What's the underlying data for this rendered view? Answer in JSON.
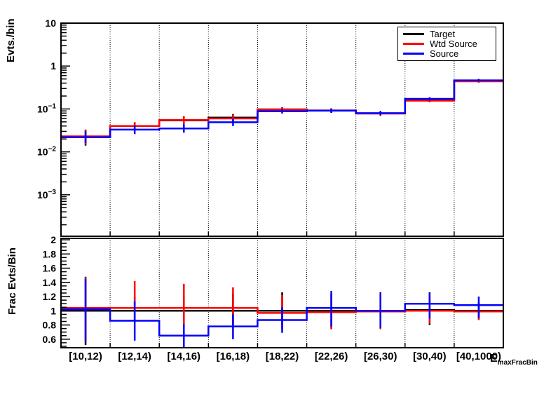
{
  "canvas": {
    "bg": "#ffffff"
  },
  "colors": {
    "target": "#000000",
    "wtd_source": "#ff0000",
    "source": "#0000ff",
    "frame": "#000000",
    "grid": "#000000"
  },
  "legend": {
    "entries": [
      "Target",
      "Wtd Source",
      "Source"
    ]
  },
  "chart_data": [
    {
      "type": "step-histogram",
      "panel": "top",
      "ylabel": "Evts./bin",
      "yscale": "log",
      "ylim": [
        0.000108,
        10
      ],
      "grid": "vertical-dotted",
      "legend_position": "top-right",
      "yticks": [
        {
          "v": 10,
          "label": "10"
        },
        {
          "v": 1,
          "label": "1"
        },
        {
          "v": 0.1,
          "label": "10^-1"
        },
        {
          "v": 0.01,
          "label": "10^-2"
        },
        {
          "v": 0.001,
          "label": "10^-3"
        }
      ],
      "categories": [
        "[10,12)",
        "[12,14)",
        "[14,16)",
        "[16,18)",
        "[18,22)",
        "[22,26)",
        "[26,30)",
        "[30,40)",
        "[40,1000)"
      ],
      "series": [
        {
          "name": "Target",
          "color": "#000000",
          "values": [
            0.022,
            0.04,
            0.054,
            0.063,
            0.098,
            0.092,
            0.079,
            0.16,
            0.46
          ],
          "err_lo": [
            0.014,
            0.032,
            0.044,
            0.051,
            0.087,
            0.082,
            0.07,
            0.146,
            0.43
          ],
          "err_hi": [
            0.033,
            0.049,
            0.067,
            0.076,
            0.11,
            0.103,
            0.089,
            0.175,
            0.49
          ]
        },
        {
          "name": "Wtd Source",
          "color": "#ff0000",
          "values": [
            0.023,
            0.04,
            0.055,
            0.06,
            0.097,
            0.092,
            0.078,
            0.156,
            0.44
          ],
          "err_lo": [
            0.015,
            0.032,
            0.044,
            0.049,
            0.086,
            0.082,
            0.069,
            0.143,
            0.41
          ],
          "err_hi": [
            0.032,
            0.049,
            0.068,
            0.073,
            0.109,
            0.103,
            0.088,
            0.171,
            0.47
          ]
        },
        {
          "name": "Source",
          "color": "#0000ff",
          "values": [
            0.022,
            0.033,
            0.035,
            0.049,
            0.088,
            0.091,
            0.08,
            0.172,
            0.465
          ],
          "err_lo": [
            0.016,
            0.026,
            0.028,
            0.04,
            0.078,
            0.081,
            0.071,
            0.157,
            0.435
          ],
          "err_hi": [
            0.03,
            0.041,
            0.044,
            0.059,
            0.099,
            0.102,
            0.09,
            0.188,
            0.5
          ]
        }
      ]
    },
    {
      "type": "step-histogram",
      "panel": "bottom",
      "ylabel": "Frac Evts/Bin",
      "xlabel_main": "E",
      "xlabel_sub": "maxFracBin",
      "yscale": "linear",
      "ylim": [
        0.48,
        2.02
      ],
      "grid": "vertical-dotted",
      "yticks": [
        {
          "v": 0.6,
          "label": "0.6"
        },
        {
          "v": 0.8,
          "label": "0.8"
        },
        {
          "v": 1,
          "label": "1"
        },
        {
          "v": 1.2,
          "label": "1.2"
        },
        {
          "v": 1.4,
          "label": "1.4"
        },
        {
          "v": 1.6,
          "label": "1.6"
        },
        {
          "v": 1.8,
          "label": "1.8"
        },
        {
          "v": 2,
          "label": "2"
        }
      ],
      "categories": [
        "[10,12)",
        "[12,14)",
        "[14,16)",
        "[16,18)",
        "[18,22)",
        "[22,26)",
        "[26,30)",
        "[30,40)",
        "[40,1000)"
      ],
      "series": [
        {
          "name": "Target",
          "color": "#000000",
          "values": [
            1.0,
            1.0,
            1.0,
            1.0,
            1.0,
            1.0,
            1.0,
            1.01,
            1.0
          ],
          "err_lo": [
            0.52,
            0.84,
            0.8,
            0.76,
            0.74,
            0.75,
            0.75,
            0.8,
            0.88
          ],
          "err_hi": [
            1.48,
            1.2,
            1.2,
            1.24,
            1.26,
            1.25,
            1.26,
            1.26,
            1.12
          ]
        },
        {
          "name": "Wtd Source",
          "color": "#ff0000",
          "values": [
            1.04,
            1.04,
            1.04,
            1.04,
            0.97,
            0.98,
            0.99,
            1.0,
            0.99
          ],
          "err_lo": [
            0.57,
            0.86,
            0.8,
            0.75,
            0.78,
            0.74,
            0.74,
            0.82,
            0.87
          ],
          "err_hi": [
            1.47,
            1.42,
            1.38,
            1.33,
            1.22,
            1.22,
            1.24,
            1.2,
            1.1
          ]
        },
        {
          "name": "Source",
          "color": "#0000ff",
          "values": [
            1.02,
            0.86,
            0.65,
            0.78,
            0.87,
            1.04,
            1.0,
            1.1,
            1.08
          ],
          "err_lo": [
            0.57,
            0.58,
            0.48,
            0.6,
            0.69,
            0.78,
            0.76,
            0.89,
            0.9
          ],
          "err_hi": [
            1.45,
            1.13,
            0.81,
            0.95,
            1.05,
            1.28,
            1.25,
            1.25,
            1.2
          ]
        }
      ]
    }
  ]
}
